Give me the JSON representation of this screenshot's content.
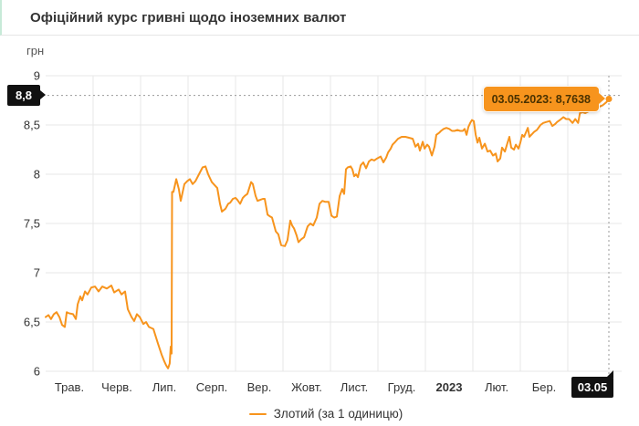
{
  "header": {
    "title": "Офіційний курс гривні щодо іноземних валют"
  },
  "colors": {
    "line": "#f7941d",
    "tooltip_bg": "#f7941d",
    "tooltip_text": "#4a3200",
    "badge_bg": "#111111",
    "grid": "#e7e7e7",
    "dashed": "#9a9a9a",
    "axis_text": "#333333",
    "header_accent": "#c7ead8"
  },
  "chart_data": {
    "type": "line",
    "title": "Офіційний курс гривні щодо іноземних валют",
    "unit_label": "грн",
    "grid": true,
    "y_range": [
      6,
      9
    ],
    "y_ticks": [
      {
        "v": 9,
        "label": "9"
      },
      {
        "v": 8.5,
        "label": "8,5"
      },
      {
        "v": 8,
        "label": "8"
      },
      {
        "v": 7.5,
        "label": "7,5"
      },
      {
        "v": 7,
        "label": "7"
      },
      {
        "v": 6.5,
        "label": "6,5"
      },
      {
        "v": 6,
        "label": "6"
      }
    ],
    "x_tick_labels": [
      "Трав.",
      "Черв.",
      "Лип.",
      "Серп.",
      "Вер.",
      "Жовт.",
      "Лист.",
      "Груд.",
      "2023",
      "Лют.",
      "Бер."
    ],
    "x_bold_index": 8,
    "x_days_total": 364,
    "current_marker": {
      "date": "03.05.2023",
      "value": 8.7638,
      "tooltip": "03.05.2023: 8,7638",
      "y_badge": "8,8",
      "dash_level": 8.8,
      "x_badge": "03.05"
    },
    "legend": {
      "position": "bottom",
      "entries": [
        {
          "label": "Злотий (за 1 одиницю)",
          "color": "#f7941d"
        }
      ]
    },
    "series": [
      {
        "name": "Злотий (за 1 одиницю)",
        "color": "#f7941d",
        "points": [
          [
            0,
            6.55
          ],
          [
            1.8,
            6.57
          ],
          [
            3.5,
            6.53
          ],
          [
            5.3,
            6.58
          ],
          [
            7.1,
            6.6
          ],
          [
            8.9,
            6.55
          ],
          [
            10.6,
            6.47
          ],
          [
            12.4,
            6.45
          ],
          [
            13.6,
            6.6
          ],
          [
            14.8,
            6.59
          ],
          [
            17.7,
            6.58
          ],
          [
            19.5,
            6.53
          ],
          [
            20.7,
            6.68
          ],
          [
            22.4,
            6.76
          ],
          [
            23.6,
            6.72
          ],
          [
            25.4,
            6.81
          ],
          [
            27.1,
            6.78
          ],
          [
            29.5,
            6.85
          ],
          [
            31.9,
            6.86
          ],
          [
            34.2,
            6.81
          ],
          [
            36.6,
            6.86
          ],
          [
            39.5,
            6.84
          ],
          [
            42.5,
            6.87
          ],
          [
            44.3,
            6.8
          ],
          [
            47.2,
            6.83
          ],
          [
            49,
            6.78
          ],
          [
            51.3,
            6.81
          ],
          [
            53.1,
            6.63
          ],
          [
            55.5,
            6.55
          ],
          [
            57.2,
            6.51
          ],
          [
            59,
            6.58
          ],
          [
            60.8,
            6.55
          ],
          [
            63.1,
            6.48
          ],
          [
            64.9,
            6.5
          ],
          [
            66.7,
            6.45
          ],
          [
            69.6,
            6.43
          ],
          [
            72.6,
            6.28
          ],
          [
            74.9,
            6.17
          ],
          [
            76.7,
            6.1
          ],
          [
            77.9,
            6.06
          ],
          [
            79.1,
            6.03
          ],
          [
            80.2,
            6.08
          ],
          [
            80.8,
            6.25
          ],
          [
            81.4,
            6.18
          ],
          [
            81.7,
            7.82
          ],
          [
            82.6,
            7.82
          ],
          [
            84.4,
            7.95
          ],
          [
            86.1,
            7.85
          ],
          [
            87.3,
            7.73
          ],
          [
            89.7,
            7.9
          ],
          [
            91.5,
            7.93
          ],
          [
            93.2,
            7.95
          ],
          [
            95,
            7.9
          ],
          [
            96.8,
            7.93
          ],
          [
            99.1,
            8
          ],
          [
            101.5,
            8.07
          ],
          [
            103.3,
            8.08
          ],
          [
            105,
            8
          ],
          [
            107.4,
            7.92
          ],
          [
            109.2,
            7.89
          ],
          [
            110.9,
            7.86
          ],
          [
            112.7,
            7.7
          ],
          [
            113.9,
            7.62
          ],
          [
            116.2,
            7.65
          ],
          [
            118,
            7.7
          ],
          [
            119.2,
            7.71
          ],
          [
            121,
            7.75
          ],
          [
            122.7,
            7.76
          ],
          [
            123.9,
            7.74
          ],
          [
            125.7,
            7.7
          ],
          [
            127.4,
            7.76
          ],
          [
            128.6,
            7.78
          ],
          [
            130.4,
            7.8
          ],
          [
            132.8,
            7.92
          ],
          [
            133.9,
            7.9
          ],
          [
            135.7,
            7.78
          ],
          [
            136.9,
            7.73
          ],
          [
            138.7,
            7.74
          ],
          [
            140.4,
            7.75
          ],
          [
            141.6,
            7.75
          ],
          [
            143.4,
            7.59
          ],
          [
            145.1,
            7.57
          ],
          [
            146.3,
            7.56
          ],
          [
            148.7,
            7.42
          ],
          [
            150.4,
            7.39
          ],
          [
            152.2,
            7.28
          ],
          [
            154.6,
            7.27
          ],
          [
            156.3,
            7.33
          ],
          [
            158.1,
            7.53
          ],
          [
            159.3,
            7.48
          ],
          [
            160.5,
            7.45
          ],
          [
            162.2,
            7.38
          ],
          [
            163.4,
            7.31
          ],
          [
            165.2,
            7.34
          ],
          [
            167,
            7.36
          ],
          [
            169.3,
            7.47
          ],
          [
            171.1,
            7.5
          ],
          [
            172.9,
            7.48
          ],
          [
            175.2,
            7.56
          ],
          [
            177,
            7.7
          ],
          [
            178.8,
            7.73
          ],
          [
            180.5,
            7.72
          ],
          [
            182.9,
            7.72
          ],
          [
            184.7,
            7.58
          ],
          [
            186.4,
            7.56
          ],
          [
            188.2,
            7.57
          ],
          [
            190,
            7.78
          ],
          [
            191.7,
            7.85
          ],
          [
            192.9,
            7.8
          ],
          [
            194.1,
            8.05
          ],
          [
            195.3,
            8.07
          ],
          [
            197.1,
            8.08
          ],
          [
            198.2,
            8.05
          ],
          [
            199.4,
            7.98
          ],
          [
            200.6,
            8
          ],
          [
            201.8,
            7.97
          ],
          [
            203.6,
            8.09
          ],
          [
            205.3,
            8.12
          ],
          [
            207.1,
            8.06
          ],
          [
            208.9,
            8.13
          ],
          [
            210.6,
            8.15
          ],
          [
            212.4,
            8.14
          ],
          [
            214.2,
            8.16
          ],
          [
            216.5,
            8.18
          ],
          [
            218.3,
            8.12
          ],
          [
            220.1,
            8.17
          ],
          [
            221.3,
            8.22
          ],
          [
            223,
            8.26
          ],
          [
            224.2,
            8.3
          ],
          [
            226,
            8.33
          ],
          [
            227.7,
            8.36
          ],
          [
            230.1,
            8.38
          ],
          [
            232.5,
            8.38
          ],
          [
            234.8,
            8.37
          ],
          [
            237.2,
            8.36
          ],
          [
            239,
            8.28
          ],
          [
            240.7,
            8.31
          ],
          [
            241.9,
            8.24
          ],
          [
            243.7,
            8.33
          ],
          [
            244.9,
            8.26
          ],
          [
            246.6,
            8.3
          ],
          [
            247.8,
            8.28
          ],
          [
            249.6,
            8.19
          ],
          [
            251.3,
            8.28
          ],
          [
            252.5,
            8.4
          ],
          [
            254.3,
            8.42
          ],
          [
            255.5,
            8.44
          ],
          [
            257.2,
            8.46
          ],
          [
            259,
            8.47
          ],
          [
            260.8,
            8.46
          ],
          [
            262.6,
            8.44
          ],
          [
            264.3,
            8.44
          ],
          [
            266.1,
            8.45
          ],
          [
            267.9,
            8.44
          ],
          [
            269.6,
            8.44
          ],
          [
            270.8,
            8.46
          ],
          [
            272,
            8.4
          ],
          [
            273.2,
            8.48
          ],
          [
            274.4,
            8.52
          ],
          [
            275.5,
            8.55
          ],
          [
            276.7,
            8.54
          ],
          [
            277.9,
            8.4
          ],
          [
            279.1,
            8.32
          ],
          [
            280.3,
            8.37
          ],
          [
            282,
            8.26
          ],
          [
            283.8,
            8.31
          ],
          [
            285.6,
            8.23
          ],
          [
            287.3,
            8.24
          ],
          [
            289.1,
            8.19
          ],
          [
            290.9,
            8.21
          ],
          [
            292.1,
            8.13
          ],
          [
            293.8,
            8.16
          ],
          [
            295,
            8.27
          ],
          [
            296.8,
            8.23
          ],
          [
            298.5,
            8.32
          ],
          [
            299.7,
            8.38
          ],
          [
            300.9,
            8.27
          ],
          [
            302.7,
            8.25
          ],
          [
            303.9,
            8.3
          ],
          [
            305.6,
            8.26
          ],
          [
            306.8,
            8.32
          ],
          [
            308,
            8.4
          ],
          [
            309.2,
            8.38
          ],
          [
            311.6,
            8.47
          ],
          [
            312.7,
            8.38
          ],
          [
            314.5,
            8.41
          ],
          [
            315.7,
            8.43
          ],
          [
            317.5,
            8.45
          ],
          [
            319.8,
            8.5
          ],
          [
            321.6,
            8.52
          ],
          [
            323.4,
            8.53
          ],
          [
            325.8,
            8.54
          ],
          [
            327.5,
            8.49
          ],
          [
            329.3,
            8.51
          ],
          [
            330.5,
            8.53
          ],
          [
            332.3,
            8.55
          ],
          [
            334.6,
            8.58
          ],
          [
            336.4,
            8.56
          ],
          [
            338.2,
            8.56
          ],
          [
            340.5,
            8.52
          ],
          [
            342.3,
            8.56
          ],
          [
            344.1,
            8.52
          ],
          [
            345.3,
            8.62
          ],
          [
            347,
            8.63
          ],
          [
            348.8,
            8.62
          ],
          [
            351.2,
            8.64
          ],
          [
            354.1,
            8.66
          ],
          [
            357,
            8.68
          ],
          [
            360,
            8.7
          ],
          [
            362.3,
            8.73
          ],
          [
            364,
            8.7638
          ]
        ]
      }
    ]
  }
}
